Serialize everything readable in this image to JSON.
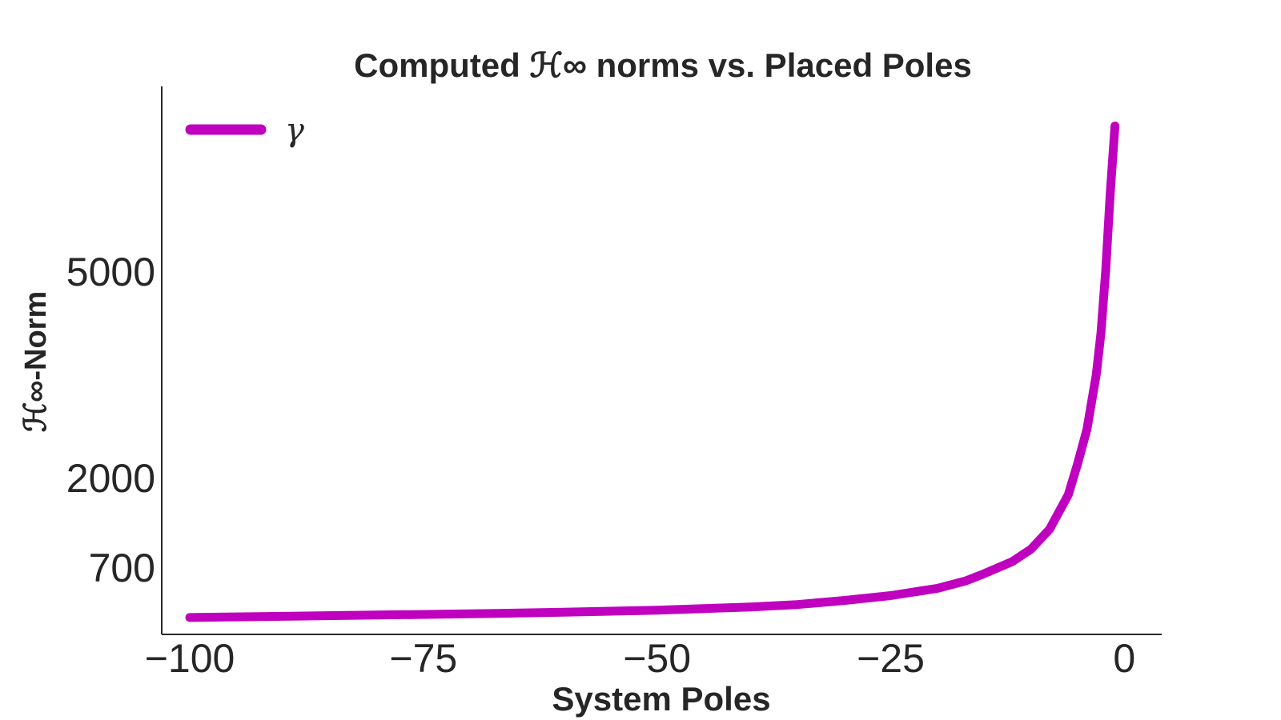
{
  "chart_data": {
    "type": "line",
    "title": "Computed ℋ∞ norms vs. Placed Poles",
    "xlabel": "System Poles",
    "ylabel": "ℋ∞-Norm",
    "xlim": [
      -103,
      4
    ],
    "ylim": [
      0,
      7800
    ],
    "xticks": [
      {
        "value": -100,
        "label": "−100"
      },
      {
        "value": -75,
        "label": "−75"
      },
      {
        "value": -50,
        "label": "−50"
      },
      {
        "value": -25,
        "label": "−25"
      },
      {
        "value": 0,
        "label": "0"
      }
    ],
    "yticks": [
      {
        "value": 700,
        "label": "700"
      },
      {
        "value": 2000,
        "label": "2000"
      },
      {
        "value": 5000,
        "label": "5000"
      }
    ],
    "legend": {
      "position": "top-left"
    },
    "grid": false,
    "series": [
      {
        "name": "γ",
        "color": "#bf00bf",
        "x": [
          -100,
          -90,
          -80,
          -70,
          -60,
          -50,
          -40,
          -35,
          -30,
          -25,
          -20,
          -17,
          -15,
          -12,
          -10,
          -8,
          -6,
          -5,
          -4,
          -3,
          -2.5,
          -2,
          -1.5,
          -1
        ],
        "y": [
          80,
          95,
          110,
          125,
          145,
          170,
          210,
          240,
          290,
          350,
          440,
          530,
          620,
          780,
          960,
          1250,
          1750,
          2200,
          2700,
          3500,
          4100,
          5000,
          6200,
          7200
        ]
      }
    ]
  }
}
